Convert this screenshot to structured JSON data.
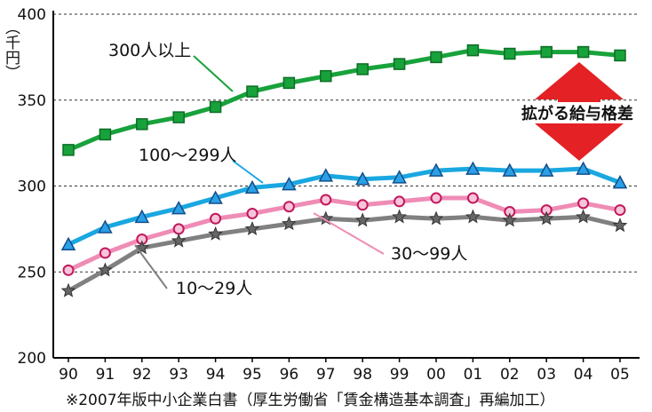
{
  "chart_data": {
    "type": "line",
    "title": "",
    "ylabel": "（千円）",
    "xlabel": "",
    "ylim": [
      200,
      400
    ],
    "yticks": [
      200,
      250,
      300,
      350,
      400
    ],
    "grid": "horizontal dashed at 300, 350, 400",
    "categories": [
      "90",
      "91",
      "92",
      "93",
      "94",
      "95",
      "96",
      "97",
      "98",
      "99",
      "00",
      "01",
      "02",
      "03",
      "04",
      "05"
    ],
    "series": [
      {
        "name": "300人以上",
        "color": "#18a23b",
        "marker": "square",
        "values": [
          321,
          330,
          336,
          340,
          346,
          355,
          360,
          364,
          368,
          371,
          375,
          379,
          377,
          378,
          378,
          376
        ]
      },
      {
        "name": "100〜299人",
        "color": "#1aa7e0",
        "marker": "triangle",
        "values": [
          266,
          276,
          282,
          287,
          293,
          299,
          301,
          306,
          304,
          305,
          309,
          310,
          309,
          309,
          310,
          302
        ]
      },
      {
        "name": "30〜99人",
        "color": "#ef8cb6",
        "marker": "circle",
        "values": [
          251,
          261,
          269,
          275,
          281,
          284,
          288,
          292,
          289,
          291,
          293,
          293,
          285,
          286,
          290,
          286
        ]
      },
      {
        "name": "10〜29人",
        "color": "#808080",
        "marker": "star",
        "values": [
          239,
          251,
          264,
          268,
          272,
          275,
          278,
          281,
          280,
          282,
          281,
          282,
          280,
          281,
          282,
          277
        ]
      }
    ],
    "annotation": "拡がる給与格差",
    "source": "※2007年版中小企業白書（厚生労働省「賃金構造基本調査」再編加工）"
  }
}
